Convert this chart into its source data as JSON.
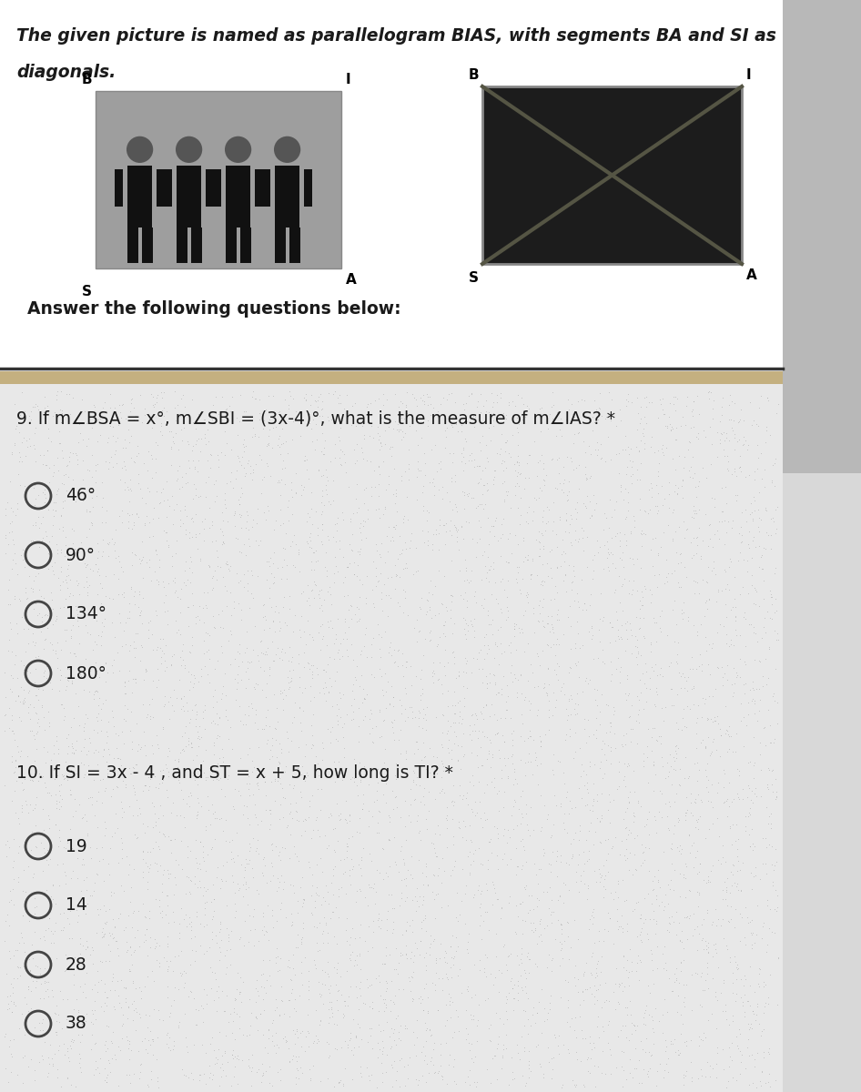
{
  "title_line1": "The given picture is named as parallelogram BIAS, with segments BA and SI as",
  "title_line2": "diagonals.",
  "answer_label": "Answer the following questions below:",
  "q9_text": "9. If m∠BSA = x°, m∠SBI = (3x-4)°, what is the measure of m∠IAS? *",
  "q9_options": [
    "46°",
    "90°",
    "134°",
    "180°"
  ],
  "q10_text": "10. If SI = 3x - 4 , and ST = x + 5, how long is TI? *",
  "q10_options": [
    "19",
    "14",
    "28",
    "38"
  ],
  "bg_color": "#ffffff",
  "text_color": "#1a1a1a",
  "header_bg": "#ffffff",
  "q_section_bg": "#f0f0f0",
  "right_shadow_color": "#aaaaaa",
  "tan_bar_color": "#c8b890",
  "circle_edge_color": "#555555"
}
